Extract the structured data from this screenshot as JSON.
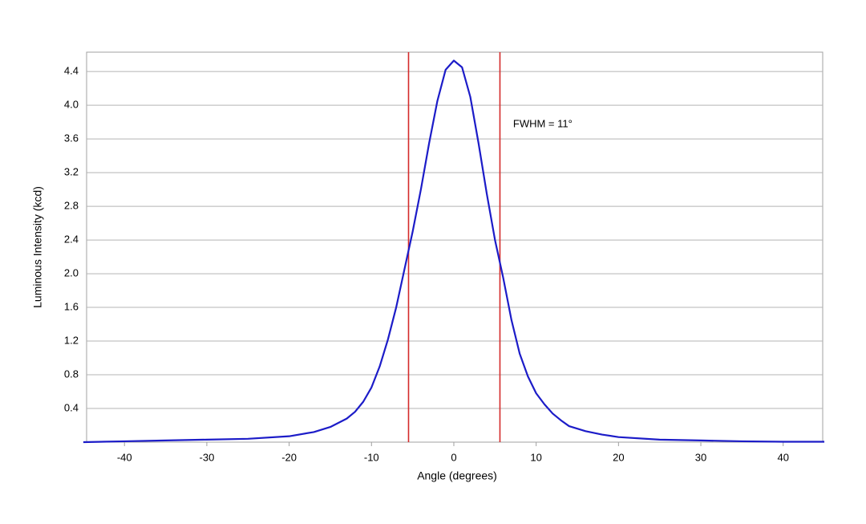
{
  "chart_data": {
    "type": "line",
    "x_label": "Angle (degrees)",
    "y_label": "Luminous Intensity (kcd)",
    "x": [
      -45,
      -40,
      -35,
      -30,
      -25,
      -20,
      -17,
      -15,
      -13,
      -12,
      -11,
      -10,
      -9,
      -8,
      -7,
      -6,
      -5,
      -4,
      -3,
      -2,
      -1,
      0,
      1,
      2,
      3,
      4,
      5,
      6,
      7,
      8,
      9,
      10,
      11,
      12,
      13,
      14,
      16,
      18,
      20,
      25,
      30,
      35,
      40,
      45
    ],
    "series": [
      {
        "color": "#1c1cc8",
        "values": [
          0.0,
          0.01,
          0.02,
          0.03,
          0.04,
          0.07,
          0.12,
          0.18,
          0.28,
          0.36,
          0.48,
          0.65,
          0.9,
          1.22,
          1.6,
          2.05,
          2.5,
          3.0,
          3.55,
          4.05,
          4.42,
          4.53,
          4.45,
          4.1,
          3.55,
          2.95,
          2.4,
          1.95,
          1.45,
          1.05,
          0.78,
          0.58,
          0.45,
          0.34,
          0.26,
          0.19,
          0.13,
          0.09,
          0.06,
          0.03,
          0.02,
          0.01,
          0.005,
          0.005
        ]
      }
    ],
    "vlines": {
      "color": "#d42a2a",
      "values": [
        -5.5,
        5.6
      ]
    },
    "annotation": {
      "text": "FWHM = 11°",
      "x": 7.2,
      "y": 3.77
    },
    "xlim": [
      -44.6,
      44.8
    ],
    "ylim": [
      0,
      4.63
    ],
    "xticks": [
      -40,
      -30,
      -20,
      -10,
      0,
      10,
      20,
      30,
      40
    ],
    "yticks": [
      0.4,
      0.8,
      1.2,
      1.6,
      {
        "value": 2,
        "label": "2.0"
      },
      2.4,
      2.8,
      3.2,
      3.6,
      {
        "value": 4,
        "label": "4.0"
      },
      4.4
    ],
    "grid": true
  }
}
